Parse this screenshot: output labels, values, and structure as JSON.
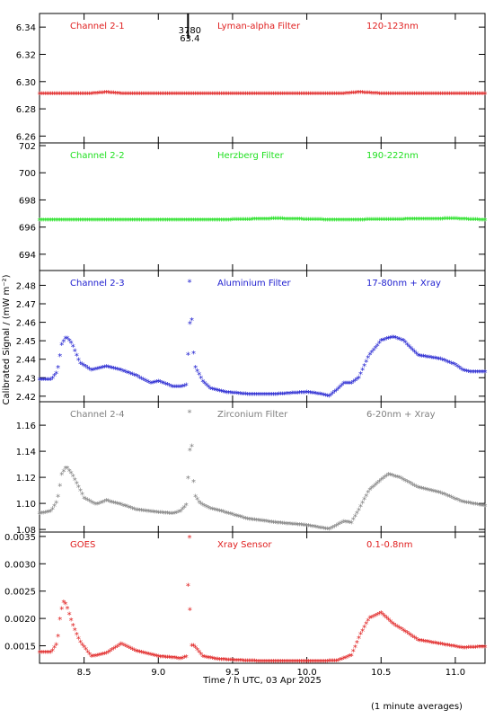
{
  "figure": {
    "xlabel": "Time / h UTC, 03 Apr 2025",
    "ylabel": "Calibrated Signal / (mW m⁻²)",
    "footer_note": "(1 minute averages)",
    "marker_glyph": "*"
  },
  "chart_data": [
    {
      "type": "scatter",
      "panel_labels": [
        "Channel 2-1",
        "Lyman-alpha Filter",
        "120-123nm"
      ],
      "color": "#e02020",
      "xlim": [
        8.2,
        11.2
      ],
      "ylim": [
        6.255,
        6.35
      ],
      "yticks": [
        "6.26",
        "6.28",
        "6.30",
        "6.32",
        "6.34"
      ],
      "ytick_values": [
        6.26,
        6.28,
        6.3,
        6.32,
        6.34
      ],
      "annotations": [
        "3780",
        "63.4"
      ],
      "annotation_x": 9.2,
      "x": [
        8.2,
        8.55,
        8.65,
        8.75,
        8.9,
        10.15,
        10.25,
        10.35,
        10.5,
        11.2
      ],
      "y": [
        6.291,
        6.291,
        6.292,
        6.291,
        6.291,
        6.291,
        6.291,
        6.292,
        6.291,
        6.291
      ]
    },
    {
      "type": "scatter",
      "panel_labels": [
        "Channel 2-2",
        "Herzberg Filter",
        "190-222nm"
      ],
      "color": "#20e020",
      "xlim": [
        8.2,
        11.2
      ],
      "ylim": [
        692.8,
        702.2
      ],
      "yticks": [
        "694",
        "696",
        "698",
        "700",
        "702"
      ],
      "ytick_values": [
        694,
        696,
        698,
        700,
        702
      ],
      "x": [
        8.2,
        9.4,
        9.8,
        10.2,
        11.0,
        11.2
      ],
      "y": [
        696.5,
        696.5,
        696.6,
        696.5,
        696.6,
        696.5
      ]
    },
    {
      "type": "scatter",
      "panel_labels": [
        "Channel 2-3",
        "Aluminium Filter",
        "17-80nm + Xray"
      ],
      "color": "#2020d0",
      "xlim": [
        8.2,
        11.2
      ],
      "ylim": [
        2.417,
        2.488
      ],
      "yticks": [
        "2.42",
        "2.43",
        "2.44",
        "2.45",
        "2.46",
        "2.47",
        "2.48"
      ],
      "ytick_values": [
        2.42,
        2.43,
        2.44,
        2.45,
        2.46,
        2.47,
        2.48
      ],
      "x": [
        8.2,
        8.28,
        8.32,
        8.35,
        8.38,
        8.42,
        8.47,
        8.55,
        8.65,
        8.75,
        8.85,
        8.95,
        9.0,
        9.1,
        9.15,
        9.19,
        9.21,
        9.23,
        9.24,
        9.26,
        9.3,
        9.35,
        9.45,
        9.6,
        9.8,
        10.0,
        10.1,
        10.15,
        10.2,
        10.25,
        10.3,
        10.35,
        10.42,
        10.5,
        10.58,
        10.65,
        10.75,
        10.9,
        11.0,
        11.05,
        11.1,
        11.2
      ],
      "y": [
        2.429,
        2.429,
        2.433,
        2.448,
        2.452,
        2.448,
        2.438,
        2.434,
        2.436,
        2.434,
        2.431,
        2.427,
        2.428,
        2.425,
        2.425,
        2.426,
        2.459,
        2.462,
        2.437,
        2.434,
        2.428,
        2.424,
        2.422,
        2.421,
        2.421,
        2.422,
        2.421,
        2.42,
        2.423,
        2.427,
        2.427,
        2.43,
        2.442,
        2.45,
        2.452,
        2.45,
        2.442,
        2.44,
        2.437,
        2.434,
        2.433,
        2.433
      ],
      "isolated_marker": {
        "x": 9.21,
        "y": 2.482
      }
    },
    {
      "type": "scatter",
      "panel_labels": [
        "Channel 2-4",
        "Zirconium Filter",
        "6-20nm + Xray"
      ],
      "color": "#808080",
      "xlim": [
        8.2,
        11.2
      ],
      "ylim": [
        1.078,
        1.178
      ],
      "yticks": [
        "1.08",
        "1.10",
        "1.12",
        "1.14",
        "1.16"
      ],
      "ytick_values": [
        1.08,
        1.1,
        1.12,
        1.14,
        1.16
      ],
      "x": [
        8.2,
        8.28,
        8.32,
        8.35,
        8.38,
        8.42,
        8.5,
        8.58,
        8.65,
        8.75,
        8.85,
        9.0,
        9.1,
        9.15,
        9.19,
        9.21,
        9.23,
        9.24,
        9.28,
        9.35,
        9.45,
        9.6,
        9.8,
        10.0,
        10.15,
        10.2,
        10.25,
        10.3,
        10.35,
        10.42,
        10.5,
        10.55,
        10.62,
        10.75,
        10.9,
        11.05,
        11.2
      ],
      "y": [
        1.092,
        1.094,
        1.102,
        1.122,
        1.128,
        1.122,
        1.104,
        1.099,
        1.102,
        1.099,
        1.095,
        1.093,
        1.092,
        1.094,
        1.099,
        1.14,
        1.145,
        1.107,
        1.1,
        1.096,
        1.093,
        1.088,
        1.085,
        1.083,
        1.08,
        1.083,
        1.086,
        1.085,
        1.095,
        1.11,
        1.118,
        1.122,
        1.12,
        1.112,
        1.108,
        1.101,
        1.098
      ],
      "isolated_marker": {
        "x": 9.21,
        "y": 1.17
      }
    },
    {
      "type": "scatter",
      "panel_labels": [
        "GOES",
        "Xray Sensor",
        "0.1-0.8nm"
      ],
      "color": "#e02020",
      "xlim": [
        8.2,
        11.2
      ],
      "ylim": [
        0.00118,
        0.00358
      ],
      "yticks": [
        "0.0015",
        "0.0020",
        "0.0025",
        "0.0030",
        "0.0035"
      ],
      "ytick_values": [
        0.0015,
        0.002,
        0.0025,
        0.003,
        0.0035
      ],
      "xticks": [
        "8.5",
        "9.0",
        "9.5",
        "10.0",
        "10.5",
        "11.0"
      ],
      "xtick_values": [
        8.5,
        9.0,
        9.5,
        10.0,
        10.5,
        11.0
      ],
      "x": [
        8.2,
        8.28,
        8.32,
        8.34,
        8.36,
        8.38,
        8.42,
        8.47,
        8.55,
        8.65,
        8.75,
        8.85,
        9.0,
        9.1,
        9.15,
        9.19,
        9.2,
        9.21,
        9.22,
        9.24,
        9.3,
        9.4,
        9.6,
        9.8,
        10.0,
        10.2,
        10.3,
        10.36,
        10.42,
        10.5,
        10.58,
        10.65,
        10.75,
        10.9,
        11.05,
        11.2
      ],
      "y": [
        0.00138,
        0.00138,
        0.00155,
        0.00205,
        0.0023,
        0.00225,
        0.0019,
        0.00158,
        0.0013,
        0.00136,
        0.00153,
        0.0014,
        0.0013,
        0.00128,
        0.00126,
        0.0013,
        0.0026,
        0.00238,
        0.0015,
        0.0015,
        0.0013,
        0.00125,
        0.00122,
        0.00121,
        0.00121,
        0.00122,
        0.00132,
        0.0017,
        0.002,
        0.0021,
        0.0019,
        0.00178,
        0.0016,
        0.00153,
        0.00146,
        0.00148
      ],
      "isolated_marker": {
        "x": 9.21,
        "y": 0.00348
      }
    }
  ]
}
